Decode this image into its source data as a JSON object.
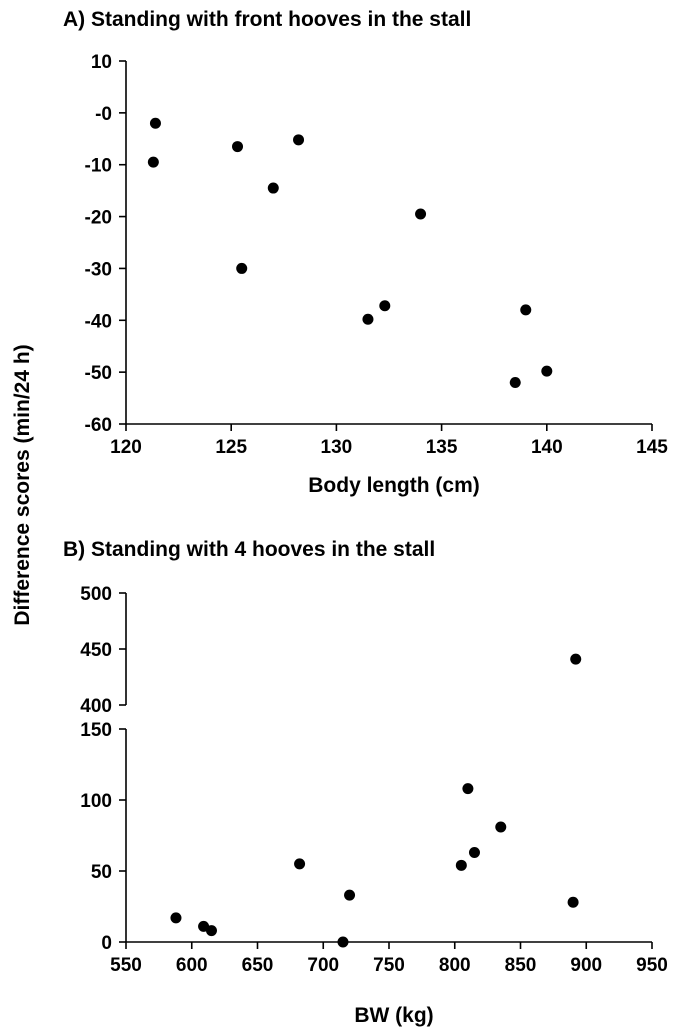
{
  "shared_ylabel": "Difference scores (min/24 h)",
  "chart_data": [
    {
      "type": "scatter",
      "title": "A) Standing with front hooves in the stall",
      "xlabel": "Body length (cm)",
      "ylabel": "Difference scores (min/24 h)",
      "xlim": [
        120,
        145
      ],
      "ylim": [
        -60,
        10
      ],
      "xticks": [
        120,
        125,
        130,
        135,
        140,
        145
      ],
      "yticks": [
        10,
        0,
        -10,
        -20,
        -30,
        -40,
        -50,
        -60
      ],
      "ytick_labels": [
        "10",
        "-0",
        "-10",
        "-20",
        "-30",
        "-40",
        "-50",
        "-60"
      ],
      "grid": false,
      "points": [
        {
          "x": 121.4,
          "y": -2
        },
        {
          "x": 121.3,
          "y": -9.5
        },
        {
          "x": 125.3,
          "y": -6.5
        },
        {
          "x": 128.2,
          "y": -5.2
        },
        {
          "x": 127.0,
          "y": -14.5
        },
        {
          "x": 125.5,
          "y": -30
        },
        {
          "x": 134.0,
          "y": -19.5
        },
        {
          "x": 131.5,
          "y": -39.8
        },
        {
          "x": 132.3,
          "y": -37.2
        },
        {
          "x": 138.5,
          "y": -52
        },
        {
          "x": 139.0,
          "y": -38
        },
        {
          "x": 140.0,
          "y": -49.8
        }
      ]
    },
    {
      "type": "scatter",
      "title": "B) Standing with 4 hooves in the stall",
      "xlabel": "BW (kg)",
      "ylabel": "Difference scores (min/24 h)",
      "xlim": [
        550,
        950
      ],
      "ylim": [
        0,
        500
      ],
      "axis_break": [
        150,
        400
      ],
      "xticks": [
        550,
        600,
        650,
        700,
        750,
        800,
        850,
        900,
        950
      ],
      "yticks_lower": [
        0,
        50,
        100,
        150
      ],
      "yticks_upper": [
        400,
        450,
        500
      ],
      "grid": false,
      "points": [
        {
          "x": 588,
          "y": 17
        },
        {
          "x": 609,
          "y": 11
        },
        {
          "x": 615,
          "y": 8
        },
        {
          "x": 682,
          "y": 55
        },
        {
          "x": 715,
          "y": 0
        },
        {
          "x": 720,
          "y": 33
        },
        {
          "x": 805,
          "y": 54
        },
        {
          "x": 810,
          "y": 108
        },
        {
          "x": 815,
          "y": 63
        },
        {
          "x": 835,
          "y": 81
        },
        {
          "x": 890,
          "y": 28
        },
        {
          "x": 892,
          "y": 441
        }
      ]
    }
  ]
}
